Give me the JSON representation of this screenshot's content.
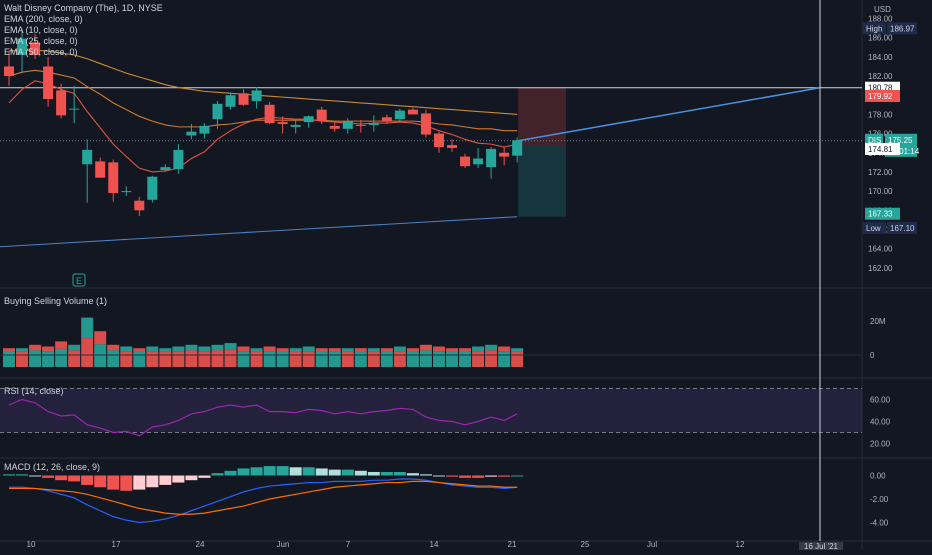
{
  "header": {
    "title": "Walt Disney Company (The), 1D, NYSE",
    "currency": "USD"
  },
  "legend": {
    "ema200": "EMA (200, close, 0)",
    "ema10": "EMA (10, close, 0)",
    "ema25": "EMA (25, close, 0)",
    "ema50": "EMA (50, close, 0)"
  },
  "labels": {
    "high_tag": "High",
    "high_value": "186.97",
    "low_tag": "Low",
    "low_value": "167.10",
    "symbol_tag": "DIS",
    "last_price": "175.25",
    "countdown": "02:01:14",
    "target_price": "180.78",
    "stop_price": "179.92",
    "entry_price": "174.81",
    "ema200_price": "167.33",
    "crosshair_date": "16 Jul '21",
    "earnings_icon_label": "E"
  },
  "colors": {
    "background": "#131722",
    "up": "#26a69a",
    "down": "#ef5350",
    "ema10": "#e0533f",
    "ema25": "#d17a2e",
    "ema50": "#c98a35",
    "ema200": "#4a7fc1",
    "rsi": "#9c27b0",
    "macd": "#2962ff",
    "signal": "#ff6d00",
    "projection": "#4a90e2"
  },
  "chart_data": [
    {
      "type": "candlestick",
      "pane": "price",
      "x_ticks": [
        "10",
        "17",
        "24",
        "Jun",
        "7",
        "14",
        "21",
        "25",
        "Jul",
        "12",
        "19"
      ],
      "y_ticks": [
        "188.00",
        "186.00",
        "184.00",
        "182.00",
        "180.00",
        "178.00",
        "176.00",
        "174.00",
        "172.00",
        "170.00",
        "168.00",
        "166.00",
        "164.00",
        "162.00"
      ],
      "ylim": [
        160.9,
        188.6
      ],
      "candles": [
        {
          "o": 183.0,
          "h": 184.5,
          "l": 181.0,
          "c": 182.0
        },
        {
          "o": 184.2,
          "h": 186.9,
          "l": 182.3,
          "c": 185.9
        },
        {
          "o": 185.5,
          "h": 186.4,
          "l": 183.8,
          "c": 184.2
        },
        {
          "o": 183.0,
          "h": 184.0,
          "l": 178.8,
          "c": 179.6
        },
        {
          "o": 180.5,
          "h": 181.2,
          "l": 177.6,
          "c": 177.9
        },
        {
          "o": 178.6,
          "h": 181.0,
          "l": 177.1,
          "c": 178.6
        },
        {
          "o": 172.8,
          "h": 175.4,
          "l": 168.8,
          "c": 174.3
        },
        {
          "o": 173.1,
          "h": 173.5,
          "l": 171.5,
          "c": 171.4
        },
        {
          "o": 173.0,
          "h": 173.3,
          "l": 168.9,
          "c": 169.8
        },
        {
          "o": 169.9,
          "h": 170.5,
          "l": 169.5,
          "c": 170.0
        },
        {
          "o": 169.0,
          "h": 169.4,
          "l": 167.4,
          "c": 168.0
        },
        {
          "o": 169.1,
          "h": 171.6,
          "l": 168.8,
          "c": 171.5
        },
        {
          "o": 172.2,
          "h": 172.8,
          "l": 172.0,
          "c": 172.5
        },
        {
          "o": 172.3,
          "h": 174.9,
          "l": 171.8,
          "c": 174.3
        },
        {
          "o": 175.8,
          "h": 177.0,
          "l": 175.4,
          "c": 176.2
        },
        {
          "o": 176.0,
          "h": 177.1,
          "l": 175.5,
          "c": 176.8
        },
        {
          "o": 177.5,
          "h": 179.4,
          "l": 176.5,
          "c": 179.1
        },
        {
          "o": 178.8,
          "h": 180.3,
          "l": 178.5,
          "c": 180.0
        },
        {
          "o": 180.2,
          "h": 180.6,
          "l": 178.9,
          "c": 179.0
        },
        {
          "o": 179.4,
          "h": 180.8,
          "l": 178.6,
          "c": 180.5
        },
        {
          "o": 179.0,
          "h": 179.3,
          "l": 177.0,
          "c": 177.1
        },
        {
          "o": 177.2,
          "h": 177.8,
          "l": 176.0,
          "c": 177.0
        },
        {
          "o": 176.7,
          "h": 177.5,
          "l": 176.0,
          "c": 176.9
        },
        {
          "o": 177.2,
          "h": 177.9,
          "l": 176.6,
          "c": 177.8
        },
        {
          "o": 178.5,
          "h": 178.8,
          "l": 177.0,
          "c": 177.3
        },
        {
          "o": 176.8,
          "h": 177.3,
          "l": 176.2,
          "c": 176.5
        },
        {
          "o": 176.5,
          "h": 177.6,
          "l": 176.0,
          "c": 177.3
        },
        {
          "o": 176.9,
          "h": 177.4,
          "l": 176.1,
          "c": 176.8
        },
        {
          "o": 176.9,
          "h": 177.9,
          "l": 176.2,
          "c": 177.1
        },
        {
          "o": 177.7,
          "h": 178.0,
          "l": 177.0,
          "c": 177.3
        },
        {
          "o": 177.5,
          "h": 178.6,
          "l": 177.2,
          "c": 178.4
        },
        {
          "o": 178.5,
          "h": 178.7,
          "l": 178.0,
          "c": 178.0
        },
        {
          "o": 178.1,
          "h": 178.5,
          "l": 175.6,
          "c": 175.9
        },
        {
          "o": 176.0,
          "h": 176.2,
          "l": 174.0,
          "c": 174.6
        },
        {
          "o": 174.8,
          "h": 175.4,
          "l": 174.1,
          "c": 174.5
        },
        {
          "o": 173.6,
          "h": 173.9,
          "l": 172.4,
          "c": 172.6
        },
        {
          "o": 172.8,
          "h": 174.5,
          "l": 172.4,
          "c": 173.4
        },
        {
          "o": 172.5,
          "h": 174.6,
          "l": 171.3,
          "c": 174.4
        },
        {
          "o": 174.0,
          "h": 174.6,
          "l": 172.7,
          "c": 173.6
        },
        {
          "o": 173.7,
          "h": 175.6,
          "l": 173.0,
          "c": 175.3
        }
      ],
      "ema10": [
        179.2,
        180.6,
        181.5,
        181.2,
        180.6,
        180.2,
        178.3,
        176.6,
        174.9,
        173.6,
        172.4,
        172.0,
        172.1,
        172.4,
        173.4,
        174.1,
        175.4,
        176.3,
        177.0,
        177.5,
        177.7,
        177.6,
        177.5,
        177.5,
        177.3,
        177.2,
        177.1,
        177.0,
        177.1,
        177.1,
        177.2,
        177.1,
        176.8,
        176.3,
        175.9,
        175.4,
        175.0,
        174.9,
        174.6,
        174.9
      ],
      "ema25": [
        182.0,
        182.4,
        182.6,
        182.4,
        182.1,
        181.8,
        180.9,
        180.1,
        179.2,
        178.5,
        177.8,
        177.3,
        176.9,
        176.7,
        176.7,
        176.7,
        176.9,
        177.0,
        177.2,
        177.4,
        177.4,
        177.4,
        177.4,
        177.4,
        177.4,
        177.3,
        177.3,
        177.3,
        177.3,
        177.3,
        177.3,
        177.3,
        177.2,
        177.0,
        176.9,
        176.7,
        176.5,
        176.5,
        176.3,
        176.3
      ],
      "ema50": [
        184.6,
        184.7,
        184.7,
        184.6,
        184.4,
        184.2,
        183.8,
        183.3,
        182.8,
        182.3,
        181.9,
        181.5,
        181.1,
        180.8,
        180.6,
        180.4,
        180.3,
        180.2,
        180.1,
        180.0,
        179.9,
        179.8,
        179.7,
        179.6,
        179.5,
        179.4,
        179.3,
        179.2,
        179.1,
        179.0,
        178.9,
        178.8,
        178.7,
        178.6,
        178.5,
        178.4,
        178.3,
        178.2,
        178.1,
        178.0
      ],
      "ema200_start": 164.2,
      "ema200_end": 167.33,
      "position": {
        "target": 180.78,
        "entry": 174.81,
        "stop_bottom": 167.33,
        "stop_top": 179.92
      },
      "projection": {
        "from": 175.25,
        "to": 180.78
      }
    },
    {
      "type": "bar",
      "pane": "volume",
      "title": "Buying Selling Volume (1)",
      "y_ticks": [
        "20M",
        "0"
      ],
      "values": [
        4,
        4,
        6,
        5,
        8,
        6,
        22,
        14,
        6,
        5,
        4,
        5,
        4,
        5,
        6,
        5,
        6,
        7,
        5,
        4,
        5,
        4,
        4,
        5,
        4,
        4,
        4,
        4,
        4,
        4,
        5,
        4,
        6,
        5,
        4,
        4,
        5,
        6,
        5,
        4
      ]
    },
    {
      "type": "line",
      "pane": "rsi",
      "title": "RSI (14, close)",
      "y_ticks": [
        "60.00",
        "40.00",
        "20.00"
      ],
      "bands": [
        30,
        70
      ],
      "values": [
        55,
        60,
        57,
        49,
        45,
        46,
        37,
        34,
        30,
        31,
        27,
        35,
        37,
        41,
        47,
        49,
        53,
        55,
        53,
        55,
        49,
        49,
        48,
        51,
        50,
        47,
        49,
        47,
        49,
        50,
        52,
        51,
        44,
        41,
        40,
        37,
        40,
        44,
        41,
        47
      ]
    },
    {
      "type": "histogram",
      "pane": "macd",
      "title": "MACD (12, 26, close, 9)",
      "y_ticks": [
        "0.00",
        "-2.00",
        "-4.00"
      ],
      "histogram": [
        0.1,
        0.1,
        0.0,
        -0.2,
        -0.4,
        -0.5,
        -0.8,
        -1.0,
        -1.2,
        -1.3,
        -1.2,
        -1.0,
        -0.8,
        -0.6,
        -0.4,
        -0.2,
        0.2,
        0.4,
        0.6,
        0.7,
        0.8,
        0.8,
        0.7,
        0.7,
        0.6,
        0.5,
        0.5,
        0.4,
        0.3,
        0.3,
        0.3,
        0.2,
        0.1,
        0.0,
        -0.1,
        -0.2,
        -0.2,
        -0.1,
        -0.1,
        0.0
      ],
      "macd": [
        -1.0,
        -1.0,
        -1.1,
        -1.3,
        -1.6,
        -1.9,
        -2.5,
        -3.0,
        -3.5,
        -3.8,
        -4.0,
        -3.9,
        -3.7,
        -3.4,
        -3.0,
        -2.6,
        -2.2,
        -1.8,
        -1.4,
        -1.1,
        -0.9,
        -0.8,
        -0.7,
        -0.6,
        -0.6,
        -0.5,
        -0.5,
        -0.5,
        -0.4,
        -0.4,
        -0.3,
        -0.3,
        -0.4,
        -0.6,
        -0.8,
        -0.9,
        -1.0,
        -1.0,
        -1.1,
        -1.0
      ],
      "signal": [
        -1.1,
        -1.1,
        -1.1,
        -1.2,
        -1.3,
        -1.4,
        -1.6,
        -1.9,
        -2.2,
        -2.5,
        -2.8,
        -3.0,
        -3.2,
        -3.3,
        -3.3,
        -3.2,
        -3.0,
        -2.8,
        -2.6,
        -2.3,
        -2.0,
        -1.8,
        -1.6,
        -1.4,
        -1.2,
        -1.0,
        -0.9,
        -0.8,
        -0.7,
        -0.6,
        -0.6,
        -0.5,
        -0.5,
        -0.6,
        -0.7,
        -0.8,
        -0.9,
        -0.9,
        -1.0,
        -1.0
      ]
    }
  ]
}
